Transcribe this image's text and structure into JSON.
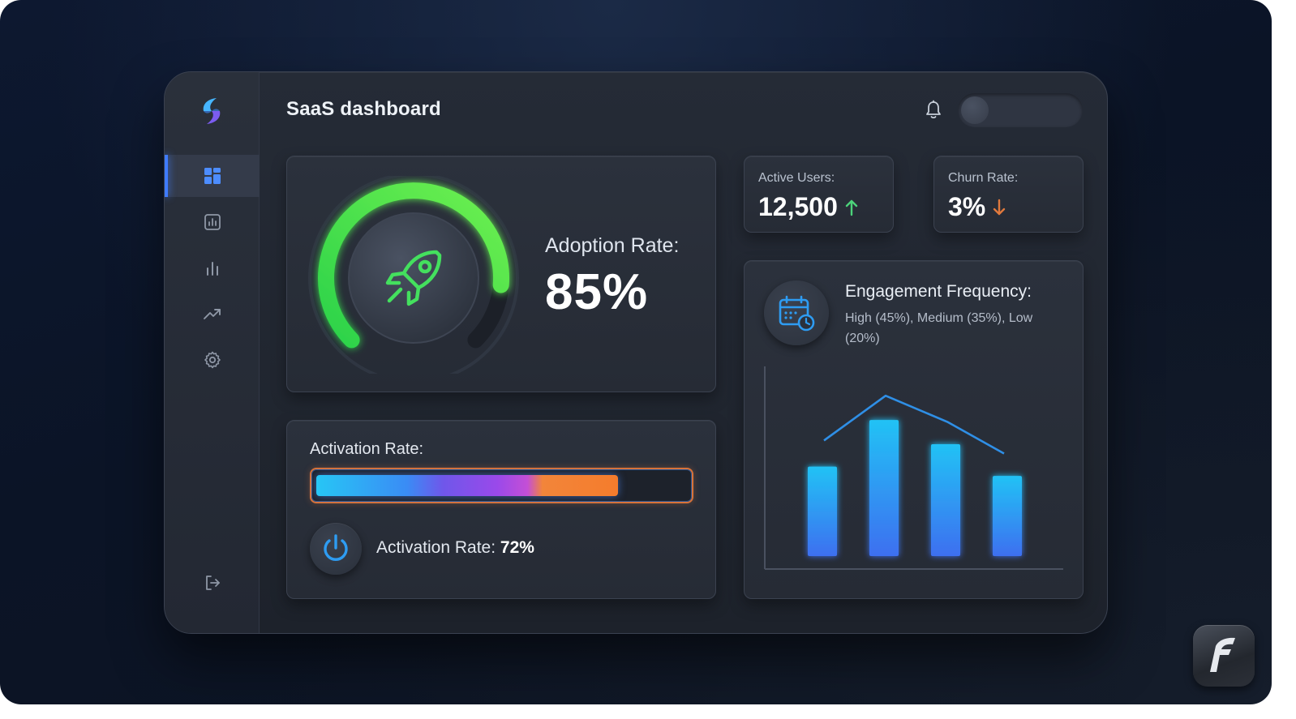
{
  "header": {
    "title": "SaaS dashboard"
  },
  "sidebar": {
    "items": [
      {
        "icon": "dashboard-grid-icon",
        "active": true
      },
      {
        "icon": "report-icon",
        "active": false
      },
      {
        "icon": "bar-chart-icon",
        "active": false
      },
      {
        "icon": "trend-icon",
        "active": false
      },
      {
        "icon": "settings-gear-icon",
        "active": false
      }
    ],
    "footer_icon": "logout-icon"
  },
  "adoption": {
    "label": "Adoption Rate:",
    "value": "85%",
    "percent": 85,
    "icon": "rocket-icon",
    "color": "#3ddc58"
  },
  "active_users": {
    "label": "Active Users:",
    "value": "12,500",
    "trend": "up",
    "trend_color": "#4cd27a"
  },
  "churn": {
    "label": "Churn Rate:",
    "value": "3%",
    "trend": "down",
    "trend_color": "#e0793d"
  },
  "activation": {
    "label": "Activation Rate:",
    "text_prefix": "Activation Rate:",
    "value": "72%",
    "percent": 72,
    "icon": "power-icon"
  },
  "engagement": {
    "title": "Engagement Frequency:",
    "description": "High (45%), Medium (35%), Low (20%)",
    "icon": "calendar-clock-icon"
  },
  "chart_data": {
    "type": "bar",
    "categories": [
      "",
      "",
      "",
      ""
    ],
    "values": [
      48,
      73,
      60,
      43
    ],
    "line_values": [
      62,
      86,
      72,
      55
    ],
    "title": "",
    "xlabel": "",
    "ylabel": "",
    "ylim": [
      0,
      100
    ],
    "grid": false,
    "bar_color": "#1e9bf0",
    "line_color": "#2f8fe6"
  }
}
